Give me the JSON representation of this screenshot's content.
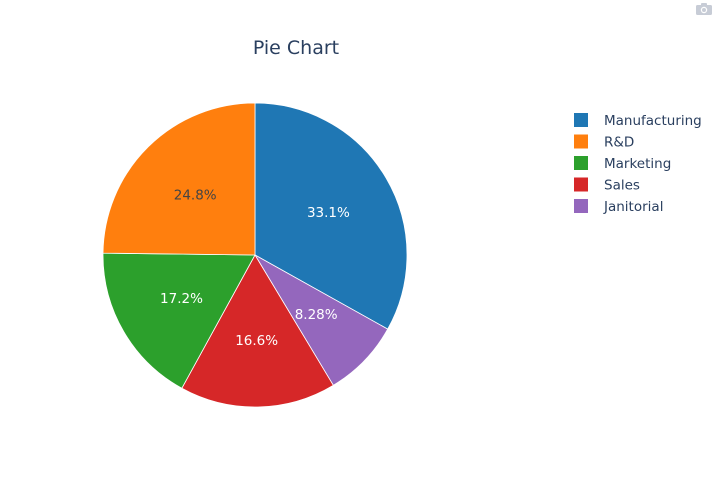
{
  "chart_data": {
    "type": "pie",
    "title": "Pie Chart",
    "labels": [
      "Manufacturing",
      "R&D",
      "Marketing",
      "Sales",
      "Janitorial"
    ],
    "percent_labels": [
      "33.1%",
      "24.8%",
      "17.2%",
      "16.6%",
      "8.28%"
    ],
    "values": [
      33.1,
      24.8,
      17.2,
      16.6,
      8.28
    ],
    "slice_order": [
      "Manufacturing",
      "Janitorial",
      "Sales",
      "Marketing",
      "R&D"
    ],
    "direction": "clockwise",
    "start": "top",
    "colors": {
      "Manufacturing": "#1f77b4",
      "R&D": "#ff7f0e",
      "Marketing": "#2ca02c",
      "Sales": "#d62728",
      "Janitorial": "#9467bd"
    },
    "label_colors": {
      "Manufacturing": "#ffffff",
      "R&D": "#444444",
      "Marketing": "#ffffff",
      "Sales": "#ffffff",
      "Janitorial": "#ffffff"
    },
    "legend_position": "top-right"
  },
  "toolbar": {
    "icon": "camera-icon"
  }
}
